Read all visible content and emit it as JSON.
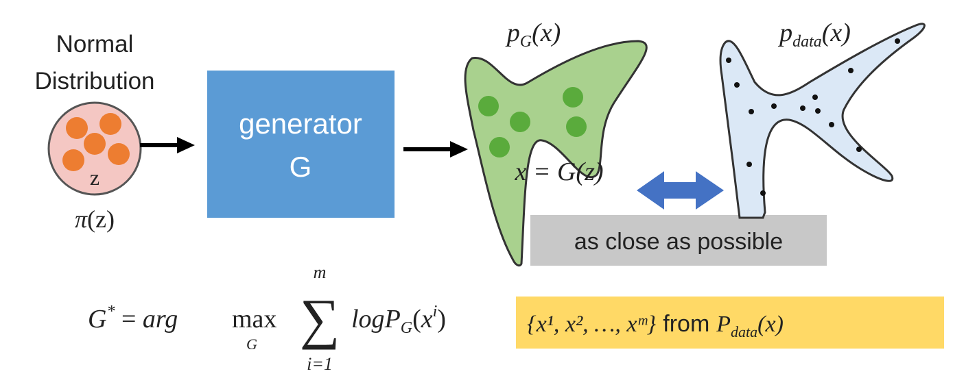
{
  "source": {
    "label_line1": "Normal",
    "label_line2": "Distribution",
    "circle_letter": "z",
    "prior": {
      "pi": "π",
      "arg": "(z)"
    }
  },
  "generator": {
    "line1": "generator",
    "line2": "G"
  },
  "pg": {
    "title_p": "p",
    "title_sub": "G",
    "title_arg": "(x)",
    "mapping": "x = G(z)"
  },
  "pdata": {
    "title_p": "p",
    "title_sub": "data",
    "title_arg": "(x)"
  },
  "compare": {
    "label": "as close as possible"
  },
  "objective": {
    "lhs": "G",
    "star": "*",
    "eq": " = ",
    "arg": "arg",
    "max": "max",
    "max_under": "G",
    "sum_symbol": "∑",
    "sum_top": "m",
    "sum_bottom": "i=1",
    "log": "log",
    "P": "P",
    "P_sub": "G",
    "open": "(",
    "x": "x",
    "x_sup": "i",
    "close": ")"
  },
  "samples": {
    "set": "{x¹, x², …, xᵐ}",
    "from_word": "from",
    "P": "P",
    "P_sub": "data",
    "arg": "(x)"
  },
  "colors": {
    "generator_fill": "#5b9bd5",
    "pg_fill": "#a9d18e",
    "pg_dots": "#5aab3c",
    "pdata_fill": "#dbe8f6",
    "source_circle": "#f4c7c3",
    "source_dots": "#ed7d31",
    "arrow_blue": "#4472c4",
    "label_box": "#c8c8c8",
    "samples_box": "#ffd966"
  }
}
